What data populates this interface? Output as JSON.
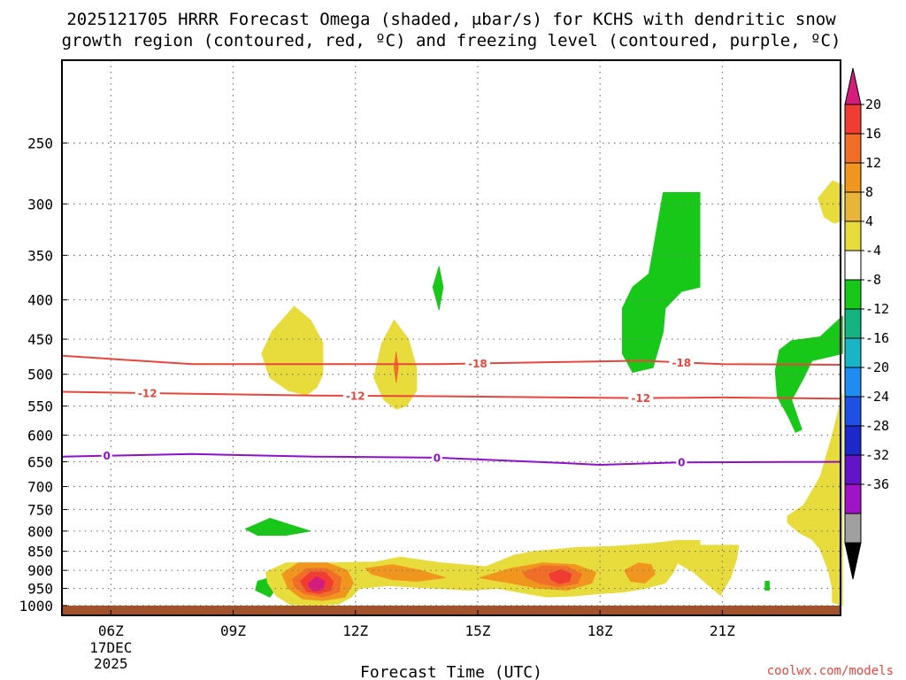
{
  "title_line1": "2025121705 HRRR Forecast Omega (shaded, μbar/s) for KCHS with dendritic snow",
  "title_line2": "growth region (contoured, red, ºC) and freezing level (contoured, purple, ºC)",
  "x_axis_title": "Forecast Time (UTC)",
  "credit": "coolwx.com/models",
  "colors": {
    "dgz_contour": "#e8463c",
    "freezing_contour": "#9010c8",
    "ground": "#a0522d",
    "credit": "#e8463c"
  },
  "chart_data": {
    "type": "heatmap",
    "x": {
      "unit": "UTC hour",
      "range": [
        4.8,
        23.9
      ],
      "ticks": [
        {
          "value": 6,
          "label": "06Z",
          "sub1": "17DEC",
          "sub2": "2025"
        },
        {
          "value": 9,
          "label": "09Z"
        },
        {
          "value": 12,
          "label": "12Z"
        },
        {
          "value": 15,
          "label": "15Z"
        },
        {
          "value": 18,
          "label": "18Z"
        },
        {
          "value": 21,
          "label": "21Z"
        }
      ]
    },
    "y": {
      "unit": "hPa",
      "scale": "log",
      "inverted": true,
      "range": [
        1030,
        195
      ],
      "ticks": [
        250,
        300,
        350,
        400,
        450,
        500,
        550,
        600,
        650,
        700,
        750,
        800,
        850,
        900,
        950,
        1000
      ]
    },
    "grid": true,
    "colorbar": {
      "labels": [
        "20",
        "16",
        "12",
        "8",
        "4",
        "-4",
        "-8",
        "-12",
        "-16",
        "-20",
        "-24",
        "-28",
        "-32",
        "-36"
      ],
      "colors": [
        "#d41c7c",
        "#f03c32",
        "#f06e28",
        "#f0961e",
        "#e8b43c",
        "#e8dc3c",
        "#ffffff",
        "#18c818",
        "#14b482",
        "#18b4c8",
        "#1e8cf0",
        "#1e50e6",
        "#1c28c8",
        "#6414c8",
        "#a014c8",
        "#a0a0a0",
        "#000000"
      ]
    },
    "contours": [
      {
        "kind": "dgz",
        "label": "-18",
        "points": [
          [
            4.8,
            473
          ],
          [
            8,
            485
          ],
          [
            11,
            485
          ],
          [
            14,
            485
          ],
          [
            17,
            482
          ],
          [
            19,
            480
          ],
          [
            21,
            485
          ],
          [
            23.9,
            486
          ]
        ],
        "label_x": [
          15,
          20
        ]
      },
      {
        "kind": "dgz",
        "label": "-12",
        "points": [
          [
            4.8,
            527
          ],
          [
            8,
            530
          ],
          [
            11,
            533
          ],
          [
            14,
            534
          ],
          [
            17,
            536
          ],
          [
            19,
            537
          ],
          [
            21,
            536
          ],
          [
            23.9,
            538
          ]
        ],
        "label_x": [
          6.9,
          12,
          19
        ]
      },
      {
        "kind": "freezing",
        "label": "0",
        "points": [
          [
            4.8,
            640
          ],
          [
            8,
            635
          ],
          [
            11,
            640
          ],
          [
            14,
            642
          ],
          [
            17,
            652
          ],
          [
            18,
            656
          ],
          [
            20,
            651
          ],
          [
            23.9,
            650
          ]
        ],
        "label_x": [
          5.9,
          14,
          20
        ]
      }
    ],
    "shaded": [
      {
        "color": "#18c818",
        "points": [
          [
            19.55,
            290
          ],
          [
            20.45,
            290
          ],
          [
            20.45,
            385
          ],
          [
            20.0,
            390
          ],
          [
            19.6,
            410
          ],
          [
            19.55,
            440
          ],
          [
            19.3,
            490
          ],
          [
            18.8,
            497
          ],
          [
            18.55,
            470
          ],
          [
            18.55,
            410
          ],
          [
            18.8,
            385
          ],
          [
            19.2,
            370
          ]
        ]
      },
      {
        "color": "#18c818",
        "points": [
          [
            23.95,
            420
          ],
          [
            23.95,
            470
          ],
          [
            23.2,
            480
          ],
          [
            23.0,
            505
          ],
          [
            22.7,
            540
          ],
          [
            22.95,
            590
          ],
          [
            22.8,
            595
          ],
          [
            22.6,
            565
          ],
          [
            22.35,
            535
          ],
          [
            22.3,
            495
          ],
          [
            22.4,
            465
          ],
          [
            22.7,
            452
          ],
          [
            23.4,
            447
          ]
        ]
      },
      {
        "color": "#18c818",
        "points": [
          [
            13.9,
            385
          ],
          [
            14.05,
            362
          ],
          [
            14.15,
            385
          ],
          [
            14.05,
            412
          ]
        ]
      },
      {
        "color": "#18c818",
        "points": [
          [
            9.3,
            795
          ],
          [
            9.9,
            770
          ],
          [
            10.4,
            785
          ],
          [
            10.9,
            800
          ],
          [
            10.3,
            810
          ],
          [
            9.6,
            810
          ]
        ]
      },
      {
        "color": "#18c818",
        "points": [
          [
            9.6,
            930
          ],
          [
            9.95,
            918
          ],
          [
            10.05,
            950
          ],
          [
            9.9,
            975
          ],
          [
            9.55,
            955
          ]
        ]
      },
      {
        "color": "#18c818",
        "points": [
          [
            22.05,
            930
          ],
          [
            22.15,
            930
          ],
          [
            22.15,
            955
          ],
          [
            22.05,
            955
          ]
        ]
      },
      {
        "color": "#e8dc3c",
        "points": [
          [
            9.7,
            470
          ],
          [
            9.95,
            440
          ],
          [
            10.5,
            408
          ],
          [
            10.9,
            425
          ],
          [
            11.2,
            455
          ],
          [
            11.2,
            500
          ],
          [
            11.05,
            520
          ],
          [
            10.8,
            532
          ],
          [
            10.35,
            525
          ],
          [
            9.9,
            505
          ]
        ]
      },
      {
        "color": "#e8dc3c",
        "points": [
          [
            12.45,
            505
          ],
          [
            12.65,
            455
          ],
          [
            12.95,
            425
          ],
          [
            13.3,
            450
          ],
          [
            13.5,
            490
          ],
          [
            13.5,
            525
          ],
          [
            13.25,
            550
          ],
          [
            13.0,
            555
          ],
          [
            12.7,
            540
          ]
        ]
      },
      {
        "color": "#e8dc3c",
        "points": [
          [
            23.35,
            295
          ],
          [
            23.7,
            280
          ],
          [
            23.95,
            283
          ],
          [
            23.95,
            315
          ],
          [
            23.75,
            318
          ],
          [
            23.5,
            312
          ]
        ]
      },
      {
        "color": "#e8dc3c",
        "points": [
          [
            23.95,
            530
          ],
          [
            23.95,
            1000
          ],
          [
            23.7,
            990
          ],
          [
            23.7,
            950
          ],
          [
            23.6,
            900
          ],
          [
            23.4,
            845
          ],
          [
            23.2,
            820
          ],
          [
            22.9,
            805
          ],
          [
            22.6,
            780
          ],
          [
            22.6,
            765
          ],
          [
            23.0,
            740
          ],
          [
            23.4,
            680
          ],
          [
            23.7,
            600
          ]
        ]
      },
      {
        "color": "#e8dc3c",
        "points": [
          [
            9.8,
            905
          ],
          [
            10.3,
            880
          ],
          [
            11.5,
            880
          ],
          [
            12.5,
            878
          ],
          [
            13.1,
            865
          ],
          [
            14.1,
            880
          ],
          [
            15.2,
            890
          ],
          [
            15.9,
            860
          ],
          [
            16.4,
            850
          ],
          [
            17.5,
            840
          ],
          [
            18.3,
            838
          ],
          [
            19.3,
            830
          ],
          [
            19.9,
            823
          ],
          [
            20.45,
            823
          ],
          [
            20.45,
            835
          ],
          [
            21.4,
            835
          ],
          [
            21.35,
            870
          ],
          [
            21.2,
            920
          ],
          [
            20.95,
            970
          ],
          [
            20.6,
            935
          ],
          [
            20.3,
            905
          ],
          [
            19.9,
            880
          ],
          [
            19.8,
            905
          ],
          [
            19.6,
            935
          ],
          [
            19.1,
            950
          ],
          [
            18.6,
            960
          ],
          [
            18.0,
            965
          ],
          [
            17.3,
            972
          ],
          [
            16.7,
            975
          ],
          [
            16.2,
            965
          ],
          [
            15.5,
            950
          ],
          [
            14.8,
            955
          ],
          [
            13.7,
            948
          ],
          [
            12.8,
            942
          ],
          [
            12.1,
            950
          ],
          [
            11.9,
            975
          ],
          [
            11.6,
            995
          ],
          [
            11.1,
            1000
          ],
          [
            10.4,
            997
          ],
          [
            10.05,
            970
          ],
          [
            9.85,
            935
          ]
        ]
      },
      {
        "color": "#f0961e",
        "points": [
          [
            12.25,
            895
          ],
          [
            12.9,
            885
          ],
          [
            13.6,
            900
          ],
          [
            14.2,
            920
          ],
          [
            13.5,
            930
          ],
          [
            12.9,
            925
          ],
          [
            12.4,
            910
          ]
        ]
      },
      {
        "color": "#f0961e",
        "points": [
          [
            15.05,
            920
          ],
          [
            15.8,
            895
          ],
          [
            16.6,
            880
          ],
          [
            17.4,
            885
          ],
          [
            17.9,
            905
          ],
          [
            17.8,
            935
          ],
          [
            17.2,
            955
          ],
          [
            16.5,
            950
          ],
          [
            15.8,
            935
          ]
        ]
      },
      {
        "color": "#f0961e",
        "points": [
          [
            18.6,
            900
          ],
          [
            18.95,
            880
          ],
          [
            19.25,
            885
          ],
          [
            19.35,
            910
          ],
          [
            19.1,
            935
          ],
          [
            18.75,
            930
          ]
        ]
      },
      {
        "color": "#f0961e",
        "points": [
          [
            10.2,
            910
          ],
          [
            10.6,
            880
          ],
          [
            11.3,
            880
          ],
          [
            11.8,
            900
          ],
          [
            11.95,
            935
          ],
          [
            11.75,
            975
          ],
          [
            11.2,
            985
          ],
          [
            10.7,
            980
          ],
          [
            10.35,
            950
          ]
        ]
      },
      {
        "color": "#f06e28",
        "points": [
          [
            10.45,
            925
          ],
          [
            10.8,
            895
          ],
          [
            11.3,
            895
          ],
          [
            11.65,
            920
          ],
          [
            11.6,
            960
          ],
          [
            11.2,
            975
          ],
          [
            10.75,
            965
          ],
          [
            10.5,
            945
          ]
        ]
      },
      {
        "color": "#f06e28",
        "points": [
          [
            16.1,
            905
          ],
          [
            16.6,
            888
          ],
          [
            17.2,
            890
          ],
          [
            17.55,
            910
          ],
          [
            17.45,
            935
          ],
          [
            17.0,
            945
          ],
          [
            16.5,
            935
          ],
          [
            16.2,
            920
          ]
        ]
      },
      {
        "color": "#f03c32",
        "points": [
          [
            10.65,
            930
          ],
          [
            10.9,
            905
          ],
          [
            11.25,
            905
          ],
          [
            11.45,
            930
          ],
          [
            11.4,
            955
          ],
          [
            11.1,
            965
          ],
          [
            10.8,
            958
          ]
        ]
      },
      {
        "color": "#f03c32",
        "points": [
          [
            16.75,
            910
          ],
          [
            17.05,
            898
          ],
          [
            17.3,
            910
          ],
          [
            17.25,
            930
          ],
          [
            17.0,
            937
          ],
          [
            16.8,
            925
          ]
        ]
      },
      {
        "color": "#d41c7c",
        "points": [
          [
            10.85,
            935
          ],
          [
            11.05,
            918
          ],
          [
            11.25,
            930
          ],
          [
            11.2,
            952
          ],
          [
            11.0,
            958
          ],
          [
            10.88,
            948
          ]
        ]
      },
      {
        "color": "#f06e28",
        "points": [
          [
            13.0,
            468
          ],
          [
            13.05,
            490
          ],
          [
            13.0,
            512
          ],
          [
            12.95,
            490
          ]
        ]
      }
    ]
  }
}
